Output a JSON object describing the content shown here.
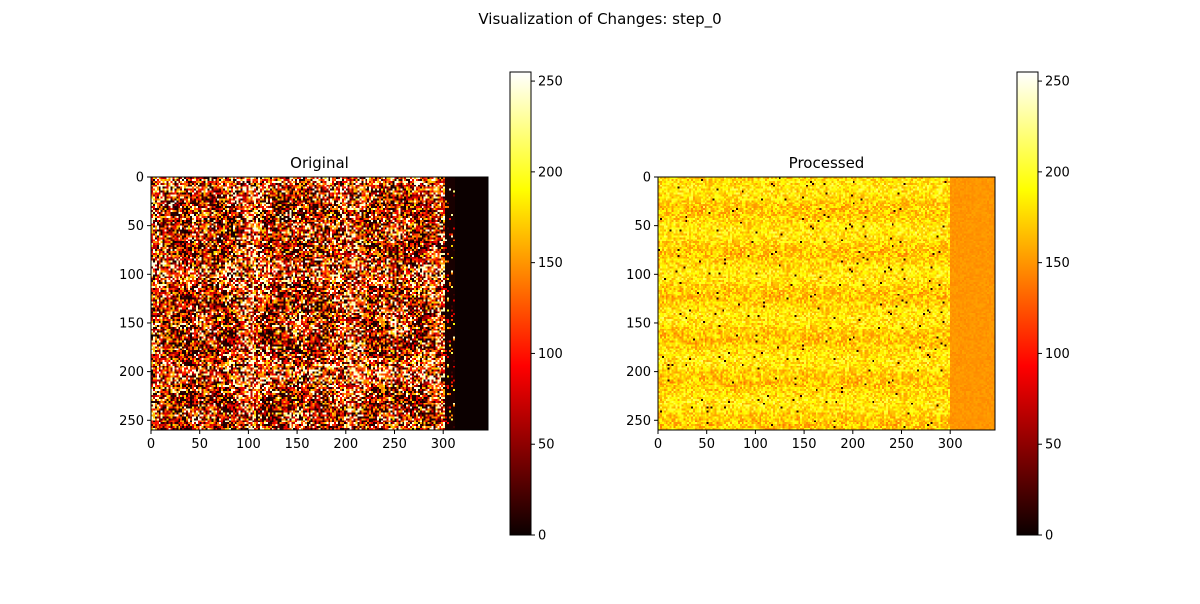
{
  "figure": {
    "title": "Visualization of Changes: step_0"
  },
  "chart_data": [
    {
      "type": "heatmap",
      "title": "Original",
      "colormap": "hot",
      "image_shape": [
        260,
        346
      ],
      "xlim": [
        0,
        346
      ],
      "ylim": [
        260,
        0
      ],
      "xticks": [
        0,
        50,
        100,
        150,
        200,
        250,
        300
      ],
      "yticks": [
        0,
        50,
        100,
        150,
        200,
        250
      ],
      "colorbar": {
        "range": [
          0,
          255
        ],
        "ticks": [
          0,
          50,
          100,
          150,
          200,
          250
        ]
      },
      "description": "Noisy pattern; bright and dark speckles with rings; columns beyond ~310 are black (0)"
    },
    {
      "type": "heatmap",
      "title": "Processed",
      "colormap": "hot",
      "image_shape": [
        260,
        346
      ],
      "xlim": [
        0,
        346
      ],
      "ylim": [
        260,
        0
      ],
      "xticks": [
        0,
        50,
        100,
        150,
        200,
        250,
        300
      ],
      "yticks": [
        0,
        50,
        100,
        150,
        200,
        250
      ],
      "colorbar": {
        "range": [
          0,
          255
        ],
        "ticks": [
          0,
          50,
          100,
          150,
          200,
          250
        ]
      },
      "description": "Mostly orange-yellow values (~140-210); columns beyond ~300 are uniform orange (~150)"
    }
  ]
}
